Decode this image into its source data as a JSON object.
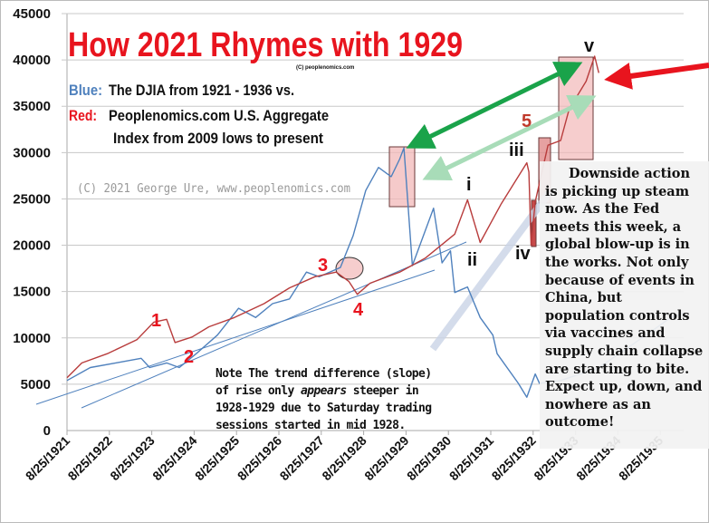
{
  "chart_data": {
    "type": "line",
    "title": "How 2021 Rhymes with 1929",
    "subtitle_small": "(C) peoplenomics.com",
    "legend": {
      "blue_label": "Blue:",
      "blue_text": "The DJIA from 1921 - 1936 vs.",
      "red_label": "Red:",
      "red_text_1": "Peoplenomics.com  U.S. Aggregate",
      "red_text_2": "Index from 2009 lows to present"
    },
    "watermark": "(C) 2021 George Ure, www.peoplenomics.com",
    "ylim": [
      0,
      45000
    ],
    "yticks": [
      "0",
      "5000",
      "10000",
      "15000",
      "20000",
      "25000",
      "30000",
      "35000",
      "40000",
      "45000"
    ],
    "xticks": [
      "8/25/1921",
      "8/25/1922",
      "8/25/1923",
      "8/25/1924",
      "8/25/1925",
      "8/25/1926",
      "8/25/1927",
      "8/25/1928",
      "8/25/1929",
      "8/25/1930",
      "8/25/1931",
      "8/25/1932",
      "8/25/1933",
      "8/25/1934",
      "8/25/1935"
    ],
    "xlim": [
      1921.5,
      1936.3
    ],
    "grid": true,
    "colors": {
      "blue": "#4f81bd",
      "red": "#b83c3c",
      "annotation": "#e8141e",
      "dark_green": "#1aa34a",
      "light_green": "#a8dcb8",
      "box": "#f2b8b8"
    },
    "series": [
      {
        "name": "DJIA 1921-1936",
        "color": "#4f81bd",
        "x": [
          1921.65,
          1922.2,
          1922.8,
          1923.4,
          1923.6,
          1924.0,
          1924.3,
          1924.7,
          1925.2,
          1925.7,
          1926.1,
          1926.5,
          1926.9,
          1927.3,
          1927.6,
          1928.1,
          1928.4,
          1928.7,
          1929.0,
          1929.3,
          1929.5,
          1929.6,
          1929.8,
          1930.3,
          1930.5,
          1930.7,
          1930.8,
          1931.1,
          1931.4,
          1931.7,
          1931.8,
          1932.3,
          1932.5,
          1932.7,
          1932.8,
          1933.3,
          1934.2,
          1935.0,
          1935.9,
          1936.2
        ],
        "y": [
          5400,
          6800,
          7300,
          7800,
          6800,
          7300,
          6800,
          8300,
          10300,
          13200,
          12200,
          13700,
          14200,
          17100,
          16600,
          17600,
          21000,
          25900,
          28400,
          27400,
          29300,
          30500,
          17800,
          24000,
          18100,
          19400,
          14900,
          15500,
          12200,
          10300,
          8300,
          5100,
          3600,
          6100,
          5100,
          5400,
          6800,
          9300,
          12200,
          12700
        ]
      },
      {
        "name": "Peoplenomics.com U.S. Aggregate Index",
        "color": "#b83c3c",
        "x": [
          1921.65,
          1922.0,
          1922.6,
          1923.3,
          1923.7,
          1924.0,
          1924.2,
          1924.6,
          1925.0,
          1925.6,
          1926.3,
          1926.9,
          1927.5,
          1928.0,
          1928.3,
          1928.5,
          1928.8,
          1929.5,
          1930.1,
          1930.8,
          1931.1,
          1931.4,
          1931.9,
          1932.5,
          1932.55,
          1932.6,
          1932.7,
          1933.0,
          1933.3,
          1933.5,
          1933.9,
          1934.1,
          1934.2
        ],
        "y": [
          5700,
          7300,
          8300,
          9800,
          11700,
          12000,
          9500,
          10100,
          11200,
          12200,
          13700,
          15400,
          16600,
          17100,
          16100,
          14700,
          15900,
          17100,
          18600,
          21200,
          24900,
          20300,
          24500,
          28900,
          27900,
          20000,
          24700,
          30800,
          31300,
          34700,
          37700,
          40400,
          38600
        ]
      }
    ],
    "annotations": {
      "wave_1": "1",
      "wave_2": "2",
      "wave_3": "3",
      "wave_4": "4",
      "wave_5": "5",
      "sub_i": "i",
      "sub_ii": "ii",
      "sub_iii": "iii",
      "sub_iv": "iv",
      "sub_v": "v"
    },
    "trend_note": "Note The trend difference (slope) of rise only appears steeper in 1928-1929 due to Saturday trading sessions started in mid 1928.",
    "trend_note_parts": {
      "a": "Note The trend difference (slope) of rise only ",
      "em": "appears",
      "b": " steeper in 1928-1929 due to Saturday trading sessions started in mid 1928."
    },
    "commentary": "Downside action is picking up steam now.  As the Fed meets this week, a global blow-up is in the works.  Not only because of events in China, but population controls via vaccines and supply chain collapse are starting to bite.  Expect up, down, and nowhere as an outcome!"
  }
}
